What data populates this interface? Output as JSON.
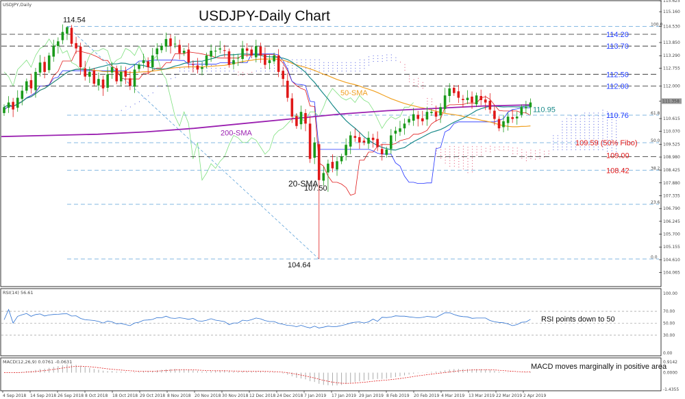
{
  "chart_data": [
    {
      "type": "candlestick",
      "symbol_caption": "USDJPY,Daily",
      "title": "USDJPY-Daily Chart",
      "y_range": [
        103.5,
        115.6
      ],
      "y_ticks": [
        "115.625",
        "115.160",
        "114.530",
        "113.850",
        "113.290",
        "112.755",
        "112.000",
        "111.353",
        "110.615",
        "110.070",
        "109.525",
        "108.980",
        "108.425",
        "107.880",
        "107.335",
        "106.790",
        "106.245",
        "105.700",
        "105.155",
        "104.610",
        "104.065"
      ],
      "x_labels": [
        "4 Sep 2018",
        "14 Sep 2018",
        "26 Sep 2018",
        "8 Oct 2018",
        "18 Oct 2018",
        "29 Oct 2018",
        "8 Nov 2018",
        "20 Nov 2018",
        "30 Nov 2018",
        "12 Dec 2018",
        "24 Dec 2018",
        "7 Jan 2019",
        "17 Jan 2019",
        "29 Jan 2019",
        "8 Feb 2019",
        "20 Feb 2019",
        "4 Mar 2019",
        "13 Mar 2019",
        "22 Mar 2019",
        "2 Apr 2019"
      ],
      "price_levels": [
        {
          "label": "114.20",
          "value": 114.2,
          "color": "#1f3cff"
        },
        {
          "label": "113.70",
          "value": 113.7,
          "color": "#1f3cff"
        },
        {
          "label": "112.50",
          "value": 112.5,
          "color": "#1f3cff"
        },
        {
          "label": "112.00",
          "value": 112.0,
          "color": "#1f3cff"
        },
        {
          "label": "110.95",
          "value": 110.95,
          "color": "#1a8a8a"
        },
        {
          "label": "110.76",
          "value": 110.76,
          "color": "#1f3cff"
        },
        {
          "label": "109.59 (50% Fibo)",
          "value": 109.59,
          "color": "#e01818"
        },
        {
          "label": "109.00",
          "value": 109.0,
          "color": "#e01818"
        },
        {
          "label": "108.42",
          "value": 108.42,
          "color": "#e01818"
        }
      ],
      "extreme_labels": [
        {
          "label": "114.54",
          "value": 114.54
        },
        {
          "label": "107.50",
          "value": 107.5
        },
        {
          "label": "104.64",
          "value": 104.64
        }
      ],
      "fib_levels": [
        {
          "label": "100.0",
          "value": 114.54
        },
        {
          "label": "61.8",
          "value": 110.76
        },
        {
          "label": "50.0",
          "value": 109.59
        },
        {
          "label": "38.2",
          "value": 108.42
        },
        {
          "label": "23.6",
          "value": 106.97
        },
        {
          "label": "0.0",
          "value": 104.64
        }
      ],
      "series_labels": [
        "20-SMA",
        "50-SMA",
        "200-SMA"
      ],
      "colors": {
        "up": "#1a9a1a",
        "down": "#e01818",
        "sma20": "#1a8a8a",
        "sma50": "#f0a020",
        "sma200": "#9a1fb0",
        "tenkan": "#e01818",
        "kijun": "#2030ff",
        "chikou": "#7fe07f"
      },
      "last_price": "111.358",
      "closes": [
        111.1,
        111.3,
        111.0,
        111.5,
        111.8,
        112.2,
        111.9,
        112.6,
        113.0,
        112.6,
        113.3,
        113.7,
        113.9,
        114.3,
        114.5,
        113.8,
        113.6,
        112.8,
        112.4,
        112.6,
        112.1,
        112.3,
        111.9,
        112.5,
        112.8,
        112.2,
        112.6,
        112.4,
        112.0,
        112.7,
        112.9,
        113.1,
        112.8,
        113.3,
        113.6,
        113.7,
        114.0,
        113.7,
        113.8,
        113.4,
        113.5,
        113.0,
        112.9,
        112.7,
        112.8,
        113.3,
        113.5,
        113.5,
        113.6,
        113.5,
        112.9,
        113.1,
        113.2,
        113.6,
        113.5,
        113.3,
        113.7,
        113.3,
        112.9,
        113.1,
        113.3,
        112.6,
        112.3,
        111.5,
        110.7,
        110.3,
        110.9,
        110.4,
        108.9,
        109.6,
        108.0,
        108.3,
        108.7,
        108.5,
        108.8,
        109.0,
        109.5,
        109.9,
        109.8,
        109.6,
        109.6,
        109.8,
        109.7,
        109.4,
        109.1,
        109.3,
        109.9,
        110.1,
        110.2,
        110.4,
        110.6,
        110.8,
        110.6,
        110.5,
        110.9,
        110.9,
        110.7,
        111.1,
        111.6,
        111.9,
        111.7,
        111.5,
        111.4,
        111.5,
        111.3,
        111.6,
        111.4,
        111.3,
        111.0,
        110.6,
        110.2,
        110.5,
        110.7,
        110.6,
        110.7,
        111.1,
        111.1,
        111.3
      ]
    },
    {
      "type": "line",
      "indicator": "RSI(14) 56.61",
      "y_range": [
        0,
        100
      ],
      "y_ticks": [
        "100.00",
        "70.00",
        "50.00",
        "30.00",
        "0.00"
      ],
      "annotation": "RSI points down to 50",
      "last_value": 56.61
    },
    {
      "type": "bar",
      "indicator": "MACD(12,26,9) 0.0761 -0.0631",
      "y_ticks": [
        "0.9142",
        "0.0000",
        "-1.4355"
      ],
      "annotation": "MACD moves marginally in positive area"
    }
  ]
}
